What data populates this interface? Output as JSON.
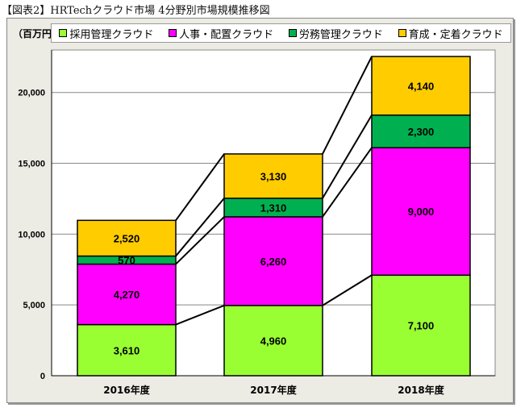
{
  "chart_data": {
    "type": "bar",
    "stacked": true,
    "title": "【図表2】HRTechクラウド市場 4分野別市場規模推移図",
    "ylabel": "（百万円）",
    "categories": [
      "2016年度",
      "2017年度",
      "2018年度"
    ],
    "series": [
      {
        "name": "採用管理クラウド",
        "color": "#99ff33",
        "values": [
          3610,
          4960,
          7100
        ],
        "labels": [
          "3,610",
          "4,960",
          "7,100"
        ]
      },
      {
        "name": "人事・配置クラウド",
        "color": "#ff00ff",
        "values": [
          4270,
          6260,
          9000
        ],
        "labels": [
          "4,270",
          "6,260",
          "9,000"
        ]
      },
      {
        "name": "労務管理クラウド",
        "color": "#00b050",
        "values": [
          570,
          1310,
          2300
        ],
        "labels": [
          "570",
          "1,310",
          "2,300"
        ]
      },
      {
        "name": "育成・定着クラウド",
        "color": "#ffcc00",
        "values": [
          2520,
          3130,
          4140
        ],
        "labels": [
          "2,520",
          "3,130",
          "4,140"
        ]
      }
    ],
    "yticks": [
      0,
      5000,
      10000,
      15000,
      20000
    ],
    "ytick_labels": [
      "0",
      "5,000",
      "10,000",
      "15,000",
      "20,000"
    ],
    "ylim": [
      0,
      23000
    ],
    "grid": true,
    "legend": "top"
  }
}
